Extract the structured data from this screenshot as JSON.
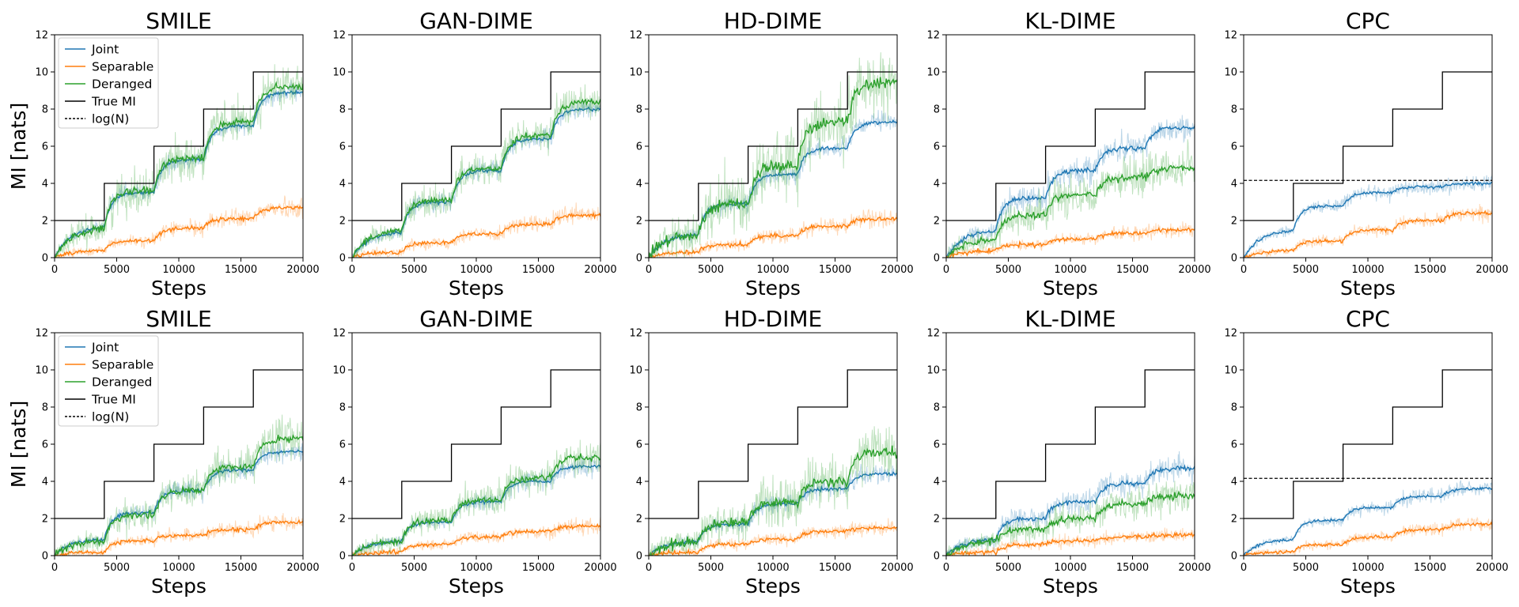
{
  "chart_data": {
    "type": "line",
    "rows": 2,
    "cols": 5,
    "titles": [
      "SMILE",
      "GAN-DIME",
      "HD-DIME",
      "KL-DIME",
      "CPC"
    ],
    "xlabel": "Steps",
    "ylabel": "MI [nats]",
    "xlim": [
      0,
      20000
    ],
    "ylim": [
      0,
      12
    ],
    "xticks": [
      "0",
      "5000",
      "10000",
      "15000",
      "20000"
    ],
    "yticks": [
      "0",
      "2",
      "4",
      "6",
      "8",
      "10",
      "12"
    ],
    "colors": {
      "Joint": "#1f77b4",
      "Separable": "#ff7f0e",
      "Deranged": "#2ca02c",
      "True MI": "#000000",
      "log(N)": "#000000"
    },
    "legend": {
      "location": "upper-left",
      "entries": [
        "Joint",
        "Separable",
        "Deranged",
        "True MI",
        "log(N)"
      ]
    },
    "true_mi": {
      "steps": [
        0,
        4000,
        8000,
        12000,
        16000,
        20000
      ],
      "values": [
        2,
        4,
        6,
        8,
        10
      ]
    },
    "logN_value": 4.16,
    "panels": [
      {
        "row": 0,
        "title": "SMILE",
        "logN": false,
        "noise": [
          0.25,
          0.3,
          0.55
        ],
        "series": [
          {
            "name": "Joint",
            "levels": [
              1.7,
              3.5,
              5.3,
              7.1,
              8.9
            ]
          },
          {
            "name": "Separable",
            "levels": [
              0.4,
              0.9,
              1.6,
              2.1,
              2.7
            ]
          },
          {
            "name": "Deranged",
            "levels": [
              1.6,
              3.6,
              5.4,
              7.3,
              9.2
            ]
          }
        ]
      },
      {
        "row": 0,
        "title": "GAN-DIME",
        "logN": false,
        "noise": [
          0.25,
          0.3,
          0.45
        ],
        "series": [
          {
            "name": "Joint",
            "levels": [
              1.4,
              3.0,
              4.7,
              6.4,
              8.0
            ]
          },
          {
            "name": "Separable",
            "levels": [
              0.3,
              0.8,
              1.3,
              1.8,
              2.3
            ]
          },
          {
            "name": "Deranged",
            "levels": [
              1.5,
              3.1,
              4.8,
              6.6,
              8.4
            ]
          }
        ]
      },
      {
        "row": 0,
        "title": "HD-DIME",
        "logN": false,
        "noise": [
          0.25,
          0.3,
          0.9
        ],
        "series": [
          {
            "name": "Joint",
            "levels": [
              1.3,
              2.9,
              4.5,
              5.9,
              7.3
            ]
          },
          {
            "name": "Separable",
            "levels": [
              0.3,
              0.7,
              1.2,
              1.7,
              2.1
            ]
          },
          {
            "name": "Deranged",
            "levels": [
              1.3,
              2.9,
              5.0,
              7.3,
              9.5
            ]
          }
        ]
      },
      {
        "row": 0,
        "title": "KL-DIME",
        "logN": false,
        "noise": [
          0.35,
          0.3,
          0.55
        ],
        "series": [
          {
            "name": "Joint",
            "levels": [
              1.5,
              3.2,
              4.7,
              5.9,
              7.0
            ]
          },
          {
            "name": "Separable",
            "levels": [
              0.4,
              0.7,
              1.0,
              1.3,
              1.5
            ]
          },
          {
            "name": "Deranged",
            "levels": [
              1.0,
              2.3,
              3.4,
              4.3,
              4.8
            ]
          }
        ]
      },
      {
        "row": 0,
        "title": "CPC",
        "logN": true,
        "noise": [
          0.2,
          0.25,
          0.2
        ],
        "series": [
          {
            "name": "Joint",
            "levels": [
              1.5,
              2.8,
              3.5,
              3.8,
              4.0
            ]
          },
          {
            "name": "Separable",
            "levels": [
              0.4,
              0.9,
              1.5,
              2.0,
              2.4
            ]
          }
        ]
      },
      {
        "row": 1,
        "title": "SMILE",
        "logN": false,
        "noise": [
          0.25,
          0.3,
          0.5
        ],
        "series": [
          {
            "name": "Joint",
            "levels": [
              0.9,
              2.3,
              3.5,
              4.6,
              5.6
            ]
          },
          {
            "name": "Separable",
            "levels": [
              0.2,
              0.8,
              1.1,
              1.4,
              1.8
            ]
          },
          {
            "name": "Deranged",
            "levels": [
              0.8,
              2.2,
              3.5,
              4.8,
              6.3
            ]
          }
        ]
      },
      {
        "row": 1,
        "title": "GAN-DIME",
        "logN": false,
        "noise": [
          0.25,
          0.3,
          0.45
        ],
        "series": [
          {
            "name": "Joint",
            "levels": [
              0.8,
              1.8,
              2.9,
              4.0,
              4.8
            ]
          },
          {
            "name": "Separable",
            "levels": [
              0.2,
              0.6,
              1.0,
              1.3,
              1.6
            ]
          },
          {
            "name": "Deranged",
            "levels": [
              0.8,
              1.9,
              3.0,
              4.2,
              5.3
            ]
          }
        ]
      },
      {
        "row": 1,
        "title": "HD-DIME",
        "logN": false,
        "noise": [
          0.25,
          0.3,
          0.7
        ],
        "series": [
          {
            "name": "Joint",
            "levels": [
              0.8,
              1.7,
              2.8,
              3.6,
              4.4
            ]
          },
          {
            "name": "Separable",
            "levels": [
              0.2,
              0.6,
              0.9,
              1.3,
              1.5
            ]
          },
          {
            "name": "Deranged",
            "levels": [
              0.8,
              1.8,
              2.9,
              4.0,
              5.6
            ]
          }
        ]
      },
      {
        "row": 1,
        "title": "KL-DIME",
        "logN": false,
        "noise": [
          0.35,
          0.3,
          0.5
        ],
        "series": [
          {
            "name": "Joint",
            "levels": [
              0.9,
              2.0,
              2.9,
              3.9,
              4.7
            ]
          },
          {
            "name": "Separable",
            "levels": [
              0.2,
              0.6,
              0.8,
              1.0,
              1.1
            ]
          },
          {
            "name": "Deranged",
            "levels": [
              0.8,
              1.4,
              2.0,
              2.8,
              3.2
            ]
          }
        ]
      },
      {
        "row": 1,
        "title": "CPC",
        "logN": true,
        "noise": [
          0.2,
          0.25,
          0.2
        ],
        "series": [
          {
            "name": "Joint",
            "levels": [
              0.9,
              1.9,
              2.6,
              3.2,
              3.6
            ]
          },
          {
            "name": "Separable",
            "levels": [
              0.2,
              0.6,
              1.0,
              1.4,
              1.7
            ]
          }
        ]
      }
    ]
  }
}
